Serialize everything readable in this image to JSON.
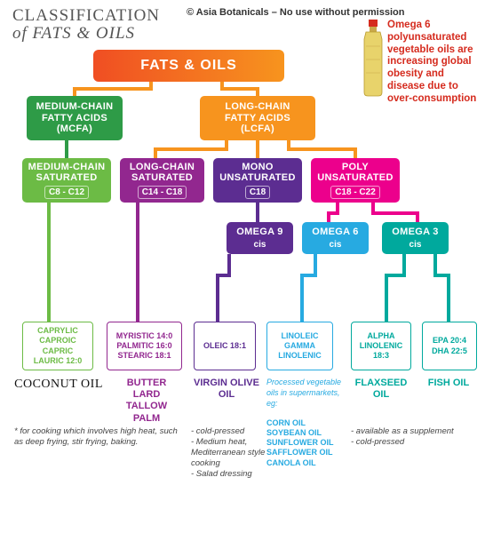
{
  "title_line1": "CLASSIFICATION",
  "title_line2": "of FATS  & OILS",
  "copyright": "© Asia Botanicals – No use without permission",
  "warning": "Omega 6 polyunsaturated vegetable oils are increasing global obesity and disease due to over-consumption",
  "root": "FATS  & OILS",
  "mcfa": {
    "line1": "MEDIUM-CHAIN",
    "line2": "FATTY ACIDS",
    "line3": "(MCFA)",
    "color": "#2e9b47"
  },
  "lcfa": {
    "line1": "LONG-CHAIN",
    "line2": "FATTY ACIDS",
    "line3": "(LCFA)",
    "color": "#f7941e"
  },
  "mcsat": {
    "line1": "MEDIUM-CHAIN",
    "line2": "SATURATED",
    "sub": "C8 - C12",
    "color": "#6cbb45"
  },
  "lcsat": {
    "line1": "LONG-CHAIN",
    "line2": "SATURATED",
    "sub": "C14 - C18",
    "color": "#92278f"
  },
  "mono": {
    "line1": "MONO",
    "line2": "UNSATURATED",
    "sub": "C18",
    "color": "#5c2d91"
  },
  "poly": {
    "line1": "POLY",
    "line2": "UNSATURATED",
    "sub": "C18 - C22",
    "color": "#ec008c"
  },
  "omega9": {
    "line1": "OMEGA 9",
    "line2": "cis",
    "color": "#5c2d91"
  },
  "omega6": {
    "line1": "OMEGA 6",
    "line2": "cis",
    "color": "#27aae1"
  },
  "omega3": {
    "line1": "OMEGA 3",
    "line2": "cis",
    "color": "#00a99d"
  },
  "leaf_mc": {
    "lines": [
      "CAPRYLIC",
      "CAPROIC",
      "CAPRIC",
      "LAURIC 12:0"
    ],
    "color": "#6cbb45"
  },
  "leaf_lc": {
    "lines": [
      "MYRISTIC 14:0",
      "PALMITIC 16:0",
      "STEARIC 18:1"
    ],
    "color": "#92278f"
  },
  "leaf_ol": {
    "lines": [
      "OLEIC 18:1"
    ],
    "color": "#5c2d91"
  },
  "leaf_o6": {
    "lines": [
      "LINOLEIC",
      "GAMMA",
      "LINOLENIC"
    ],
    "color": "#27aae1"
  },
  "leaf_o3a": {
    "lines": [
      "ALPHA",
      "LINOLENIC",
      "18:3"
    ],
    "color": "#00a99d"
  },
  "leaf_o3b": {
    "lines": [
      "EPA 20:4",
      "DHA 22:5"
    ],
    "color": "#00a99d"
  },
  "prod_coconut": "COCONUT OIL",
  "prod_butter": {
    "text": "BUTTER\nLARD\nTALLOW\nPALM",
    "color": "#92278f"
  },
  "prod_olive": {
    "text": "VIRGIN OLIVE OIL",
    "color": "#5c2d91"
  },
  "prod_flax": {
    "text": "FLAXSEED OIL",
    "color": "#00a99d"
  },
  "prod_fish": {
    "text": "FISH OIL",
    "color": "#00a99d"
  },
  "note_coconut": "* for cooking which involves high heat, such as deep frying, stir frying, baking.",
  "note_olive": "- cold-pressed\n- Medium heat, Mediterranean style cooking\n- Salad dressing",
  "note_veg_title": "Processed vegetable oils in supermarkets, eg:",
  "note_veg_list": "CORN OIL\nSOYBEAN OIL\nSUNFLOWER OIL\nSAFFLOWER OIL\nCANOLA OIL",
  "note_flax": "- available as a supplement\n- cold-pressed",
  "bottle": {
    "cap": "#d52b1e",
    "body": "#e8d36b",
    "outline": "#b89a2e"
  }
}
